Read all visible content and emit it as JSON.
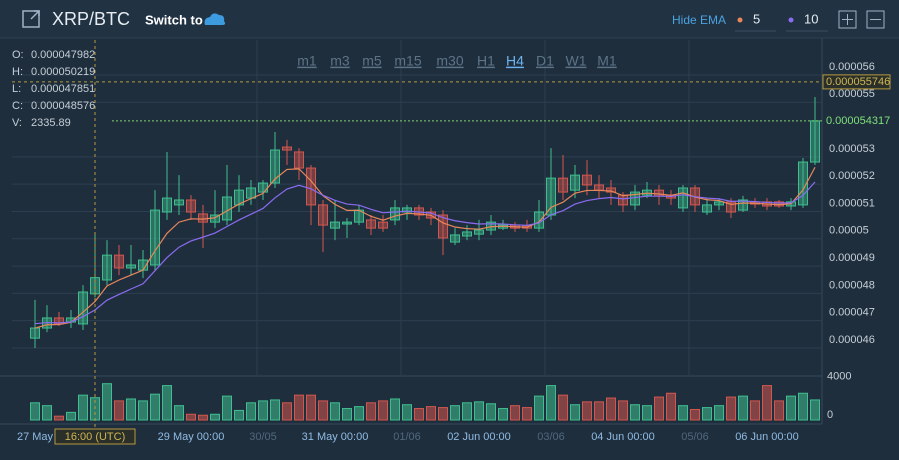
{
  "header": {
    "pair": "XRP/BTC",
    "switch_to": "Switch to",
    "hide_ema": "Hide EMA"
  },
  "intervals": [
    "m1",
    "m3",
    "m5",
    "m15",
    "m30",
    "H1",
    "H4",
    "D1",
    "W1",
    "M1"
  ],
  "active_interval": "H4",
  "ohlc_labels": [
    "O:",
    "H:",
    "L:",
    "C:",
    "V:"
  ],
  "chart_data": {
    "type": "candlestick",
    "categories": [
      "27 May",
      null,
      null,
      null,
      null,
      "16:00 (UTC)",
      null,
      null,
      null,
      null,
      null,
      null,
      null,
      "29 May 00:00",
      null,
      null,
      null,
      null,
      null,
      "30/05",
      null,
      null,
      null,
      null,
      null,
      "31 May 00:00",
      null,
      null,
      null,
      null,
      null,
      "01/06",
      null,
      null,
      null,
      null,
      null,
      "02 Jun 00:00",
      null,
      null,
      null,
      null,
      null,
      "03/06",
      null,
      null,
      null,
      null,
      null,
      "04 Jun 00:00",
      null,
      null,
      null,
      null,
      null,
      "05/06",
      null,
      null,
      null,
      null,
      null,
      "06 Jun 00:00",
      null,
      null,
      null,
      null
    ],
    "open": [
      4.636e-05,
      4.673e-05,
      4.71e-05,
      4.695e-05,
      4.688e-05,
      4.7982e-05,
      4.849e-05,
      4.94e-05,
      4.893e-05,
      4.885e-05,
      4.904e-05,
      5.098e-05,
      5.124e-05,
      5.142e-05,
      5.091e-05,
      5.061e-05,
      5.069e-05,
      5.124e-05,
      5.149e-05,
      5.171e-05,
      5.204e-05,
      5.336e-05,
      5.318e-05,
      5.259e-05,
      5.124e-05,
      5.039e-05,
      5.054e-05,
      5.061e-05,
      5.069e-05,
      5.061e-05,
      5.069e-05,
      5.098e-05,
      5.113e-05,
      5.098e-05,
      5.087e-05,
      4.988e-05,
      5.01e-05,
      5.017e-05,
      5.032e-05,
      5.039e-05,
      5.05e-05,
      5.047e-05,
      5.039e-05,
      5.087e-05,
      5.222e-05,
      5.178e-05,
      5.233e-05,
      5.197e-05,
      5.186e-05,
      5.16e-05,
      5.124e-05,
      5.16e-05,
      5.178e-05,
      5.16e-05,
      5.113e-05,
      5.186e-05,
      5.098e-05,
      5.124e-05,
      5.135e-05,
      5.105e-05,
      5.135e-05,
      5.135e-05,
      5.135e-05,
      5.12e-05,
      5.124e-05,
      5.281e-05
    ],
    "high": [
      4.776e-05,
      4.757e-05,
      4.732e-05,
      4.739e-05,
      4.83e-05,
      5.0219e-05,
      4.995e-05,
      4.977e-05,
      4.977e-05,
      4.959e-05,
      5.178e-05,
      5.318e-05,
      5.233e-05,
      5.16e-05,
      5.124e-05,
      5.178e-05,
      5.27e-05,
      5.233e-05,
      5.215e-05,
      5.215e-05,
      5.391e-05,
      5.362e-05,
      5.332e-05,
      5.27e-05,
      5.142e-05,
      5.142e-05,
      5.076e-05,
      5.124e-05,
      5.087e-05,
      5.087e-05,
      5.142e-05,
      5.124e-05,
      5.124e-05,
      5.113e-05,
      5.105e-05,
      5.039e-05,
      5.05e-05,
      5.069e-05,
      5.087e-05,
      5.069e-05,
      5.061e-05,
      5.069e-05,
      5.142e-05,
      5.332e-05,
      5.307e-05,
      5.27e-05,
      5.288e-05,
      5.233e-05,
      5.215e-05,
      5.171e-05,
      5.197e-05,
      5.208e-05,
      5.197e-05,
      5.178e-05,
      5.197e-05,
      5.197e-05,
      5.149e-05,
      5.149e-05,
      5.149e-05,
      5.157e-05,
      5.149e-05,
      5.149e-05,
      5.142e-05,
      5.149e-05,
      5.296e-05,
      5.519e-05
    ],
    "low": [
      4.6e-05,
      4.658e-05,
      4.68e-05,
      4.673e-05,
      4.666e-05,
      4.7851e-05,
      4.83e-05,
      4.867e-05,
      4.867e-05,
      4.856e-05,
      4.885e-05,
      5.069e-05,
      5.087e-05,
      5.069e-05,
      4.966e-05,
      5.039e-05,
      5.05e-05,
      5.098e-05,
      5.124e-05,
      5.142e-05,
      5.186e-05,
      5.27e-05,
      5.215e-05,
      5.05e-05,
      4.951e-05,
      4.995e-05,
      5.003e-05,
      5.05e-05,
      5.014e-05,
      5.025e-05,
      5.05e-05,
      5.069e-05,
      5.069e-05,
      5.05e-05,
      4.94e-05,
      4.977e-05,
      4.995e-05,
      4.995e-05,
      5.014e-05,
      5.032e-05,
      5.025e-05,
      5.025e-05,
      5.025e-05,
      5.069e-05,
      5.142e-05,
      5.149e-05,
      5.16e-05,
      5.149e-05,
      5.124e-05,
      5.098e-05,
      5.105e-05,
      5.149e-05,
      5.124e-05,
      5.124e-05,
      5.098e-05,
      5.098e-05,
      5.087e-05,
      5.105e-05,
      5.076e-05,
      5.098e-05,
      5.113e-05,
      5.105e-05,
      5.113e-05,
      5.105e-05,
      5.113e-05,
      5.27e-05
    ],
    "close": [
      4.673e-05,
      4.71e-05,
      4.688e-05,
      4.71e-05,
      4.805e-05,
      4.8576e-05,
      4.94e-05,
      4.893e-05,
      4.904e-05,
      4.922e-05,
      5.105e-05,
      5.149e-05,
      5.142e-05,
      5.098e-05,
      5.061e-05,
      5.087e-05,
      5.153e-05,
      5.178e-05,
      5.186e-05,
      5.204e-05,
      5.325e-05,
      5.325e-05,
      5.259e-05,
      5.124e-05,
      5.05e-05,
      5.061e-05,
      5.061e-05,
      5.105e-05,
      5.039e-05,
      5.039e-05,
      5.113e-05,
      5.113e-05,
      5.087e-05,
      5.076e-05,
      5.003e-05,
      5.014e-05,
      5.025e-05,
      5.032e-05,
      5.061e-05,
      5.05e-05,
      5.039e-05,
      5.039e-05,
      5.098e-05,
      5.222e-05,
      5.171e-05,
      5.233e-05,
      5.197e-05,
      5.178e-05,
      5.171e-05,
      5.124e-05,
      5.171e-05,
      5.178e-05,
      5.157e-05,
      5.149e-05,
      5.186e-05,
      5.124e-05,
      5.124e-05,
      5.135e-05,
      5.098e-05,
      5.142e-05,
      5.127e-05,
      5.12e-05,
      5.12e-05,
      5.135e-05,
      5.281e-05,
      5.4317e-05
    ],
    "volume": [
      1800,
      1500,
      400,
      800,
      2600,
      2335.89,
      3800,
      2000,
      2200,
      2000,
      2700,
      3600,
      1500,
      600,
      500,
      600,
      2500,
      1000,
      1800,
      2000,
      2100,
      1800,
      2600,
      2600,
      2000,
      1800,
      1200,
      1400,
      1800,
      2000,
      2200,
      1600,
      1200,
      1400,
      1300,
      1500,
      1800,
      1900,
      1700,
      1200,
      1500,
      1300,
      2500,
      3600,
      2600,
      1600,
      1900,
      1900,
      2300,
      2000,
      1600,
      1500,
      2400,
      2800,
      1500,
      1100,
      1300,
      1500,
      2400,
      2500,
      2000,
      3600,
      2000,
      2500,
      2800,
      2100
    ],
    "up_color": "#3fbf8f",
    "down_color": "#d2574f",
    "series": [
      {
        "name": "5",
        "color": "#e8875a",
        "values": [
          4.673e-05,
          4.685e-05,
          4.686e-05,
          4.694e-05,
          4.731e-05,
          4.77e-05,
          4.827e-05,
          4.849e-05,
          4.867e-05,
          4.885e-05,
          4.956e-05,
          5.02e-05,
          5.061e-05,
          5.073e-05,
          5.072e-05,
          5.077e-05,
          5.102e-05,
          5.127e-05,
          5.147e-05,
          5.166e-05,
          5.219e-05,
          5.254e-05,
          5.256e-05,
          5.212e-05,
          5.158e-05,
          5.126e-05,
          5.104e-05,
          5.104e-05,
          5.082e-05,
          5.068e-05,
          5.083e-05,
          5.093e-05,
          5.091e-05,
          5.086e-05,
          5.058e-05,
          5.043e-05,
          5.037e-05,
          5.035e-05,
          5.044e-05,
          5.046e-05,
          5.044e-05,
          5.042e-05,
          5.061e-05,
          5.115e-05,
          5.134e-05,
          5.167e-05,
          5.177e-05,
          5.177e-05,
          5.175e-05,
          5.158e-05,
          5.162e-05,
          5.167e-05,
          5.164e-05,
          5.159e-05,
          5.168e-05,
          5.153e-05,
          5.143e-05,
          5.14e-05,
          5.126e-05,
          5.131e-05,
          5.13e-05,
          5.127e-05,
          5.125e-05,
          5.128e-05,
          5.179e-05,
          5.262e-05
        ]
      },
      {
        "name": "10",
        "color": "#8a6cf0",
        "values": [
          4.689e-05,
          4.693e-05,
          4.692e-05,
          4.695e-05,
          4.715e-05,
          4.739e-05,
          4.775e-05,
          4.796e-05,
          4.816e-05,
          4.835e-05,
          4.883e-05,
          4.931e-05,
          4.969e-05,
          4.992e-05,
          5.006e-05,
          5.021e-05,
          5.045e-05,
          5.069e-05,
          5.09e-05,
          5.111e-05,
          5.15e-05,
          5.182e-05,
          5.196e-05,
          5.183e-05,
          5.159e-05,
          5.141e-05,
          5.127e-05,
          5.123e-05,
          5.108e-05,
          5.095e-05,
          5.098e-05,
          5.101e-05,
          5.098e-05,
          5.094e-05,
          5.077e-05,
          5.066e-05,
          5.059e-05,
          5.054e-05,
          5.055e-05,
          5.054e-05,
          5.051e-05,
          5.049e-05,
          5.058e-05,
          5.088e-05,
          5.103e-05,
          5.127e-05,
          5.14e-05,
          5.147e-05,
          5.151e-05,
          5.146e-05,
          5.151e-05,
          5.156e-05,
          5.156e-05,
          5.155e-05,
          5.161e-05,
          5.154e-05,
          5.149e-05,
          5.146e-05,
          5.137e-05,
          5.138e-05,
          5.136e-05,
          5.133e-05,
          5.131e-05,
          5.132e-05,
          5.159e-05,
          5.208e-05
        ]
      }
    ],
    "ylim": [
      4.501e-05,
      5.728e-05
    ],
    "yticks": [
      4.6e-05,
      4.7e-05,
      4.8e-05,
      4.9e-05,
      5e-05,
      5.1e-05,
      5.2e-05,
      5.3e-05,
      5.5e-05,
      5.6e-05
    ],
    "vlim": [
      0,
      4500
    ],
    "vticks": [
      0,
      4000
    ],
    "grid": true,
    "crosshair": {
      "x": "16:00 (UTC)",
      "y": 5.5746e-05
    },
    "last_price": 5.4317e-05
  }
}
